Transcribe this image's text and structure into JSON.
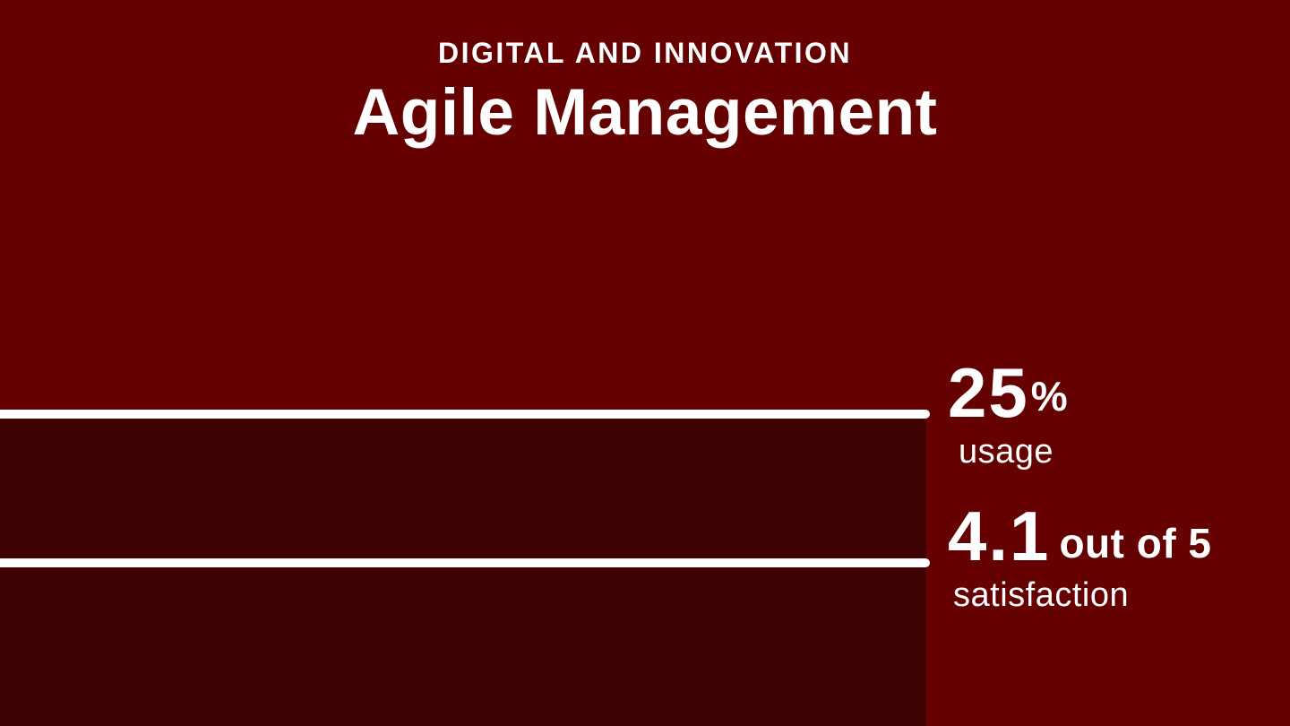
{
  "header": {
    "eyebrow": "DIGITAL AND INNOVATION",
    "title": "Agile Management"
  },
  "stats": [
    {
      "value": "25",
      "unit": "%",
      "label": "usage"
    },
    {
      "value": "4.1",
      "suffix": "out of 5",
      "label": "satisfaction"
    }
  ],
  "colors": {
    "background": "#660101",
    "bar": "#3E0202",
    "rule": "#FFFFFF",
    "text": "#FFFFFF"
  },
  "chart_data": {
    "type": "bar",
    "title": "Agile Management",
    "subtitle": "DIGITAL AND INNOVATION",
    "orientation": "horizontal",
    "grid": false,
    "legend_position": "none",
    "series": [
      {
        "name": "usage",
        "value": 25,
        "unit": "%",
        "display": "25% usage"
      },
      {
        "name": "satisfaction",
        "value": 4.1,
        "scale_max": 5,
        "display": "4.1 out of 5 satisfaction"
      }
    ]
  }
}
